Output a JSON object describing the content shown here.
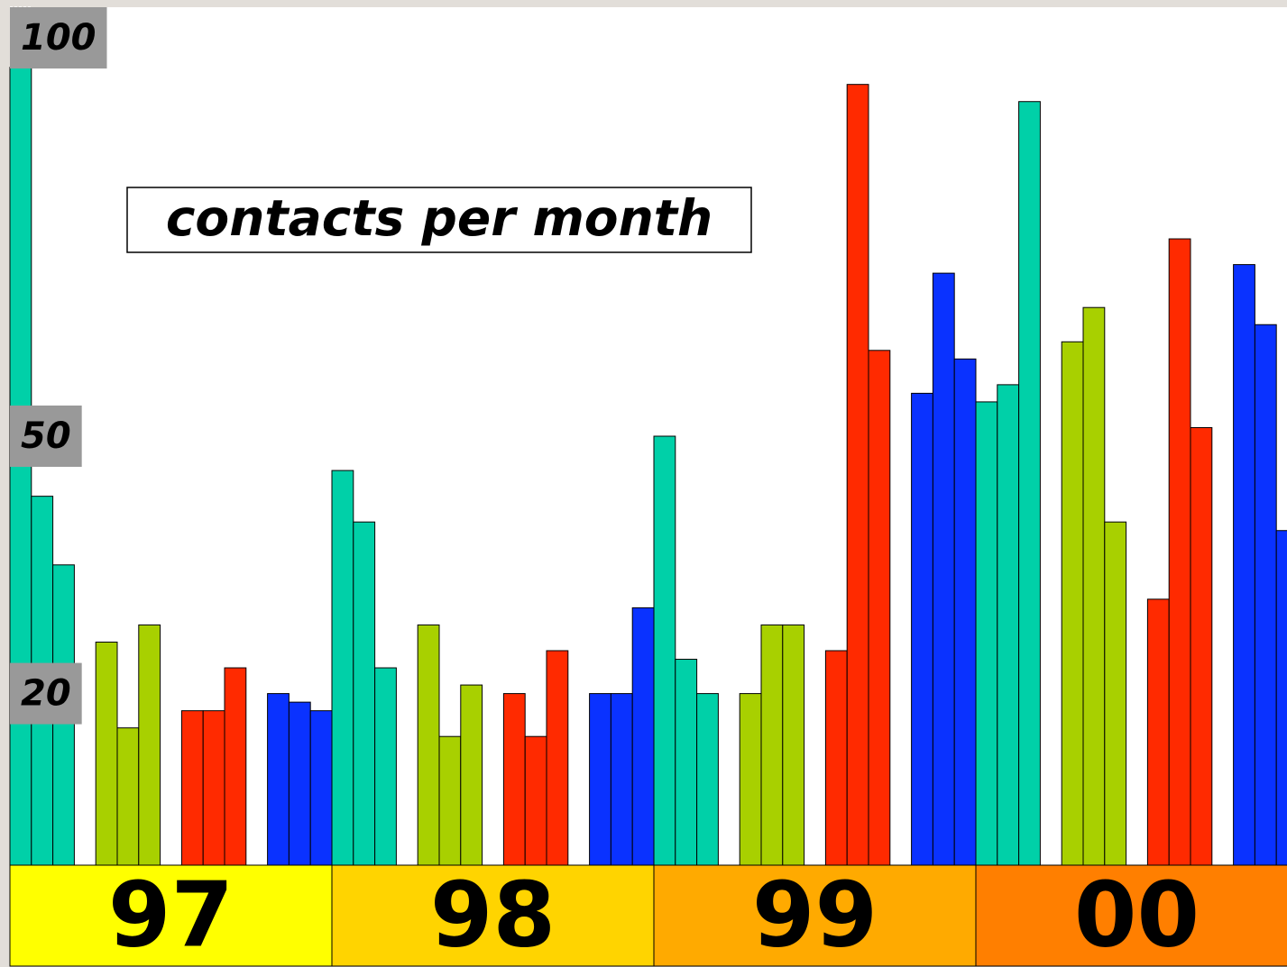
{
  "chart_data": {
    "type": "bar",
    "title": "contacts per month",
    "categories": [
      "97",
      "98",
      "99",
      "00"
    ],
    "values": [
      [
        93,
        43,
        35,
        26,
        16,
        28,
        18,
        18,
        23,
        20,
        19,
        18
      ],
      [
        46,
        40,
        23,
        28,
        15,
        21,
        20,
        15,
        25,
        20,
        20,
        30
      ],
      [
        50,
        24,
        20,
        20,
        28,
        28,
        25,
        91,
        60,
        55,
        69,
        59
      ],
      [
        54,
        56,
        89,
        61,
        65,
        40,
        31,
        73,
        51,
        70,
        63,
        39
      ]
    ],
    "colors": [
      "#00d0a8",
      "#a8d000",
      "#ff2a00",
      "#0a32ff"
    ],
    "category_colors": [
      "#ffff00",
      "#ffd400",
      "#ffaa00",
      "#ff7f00"
    ],
    "ylim": [
      0,
      100
    ],
    "yticks": [
      20,
      50,
      100
    ]
  }
}
